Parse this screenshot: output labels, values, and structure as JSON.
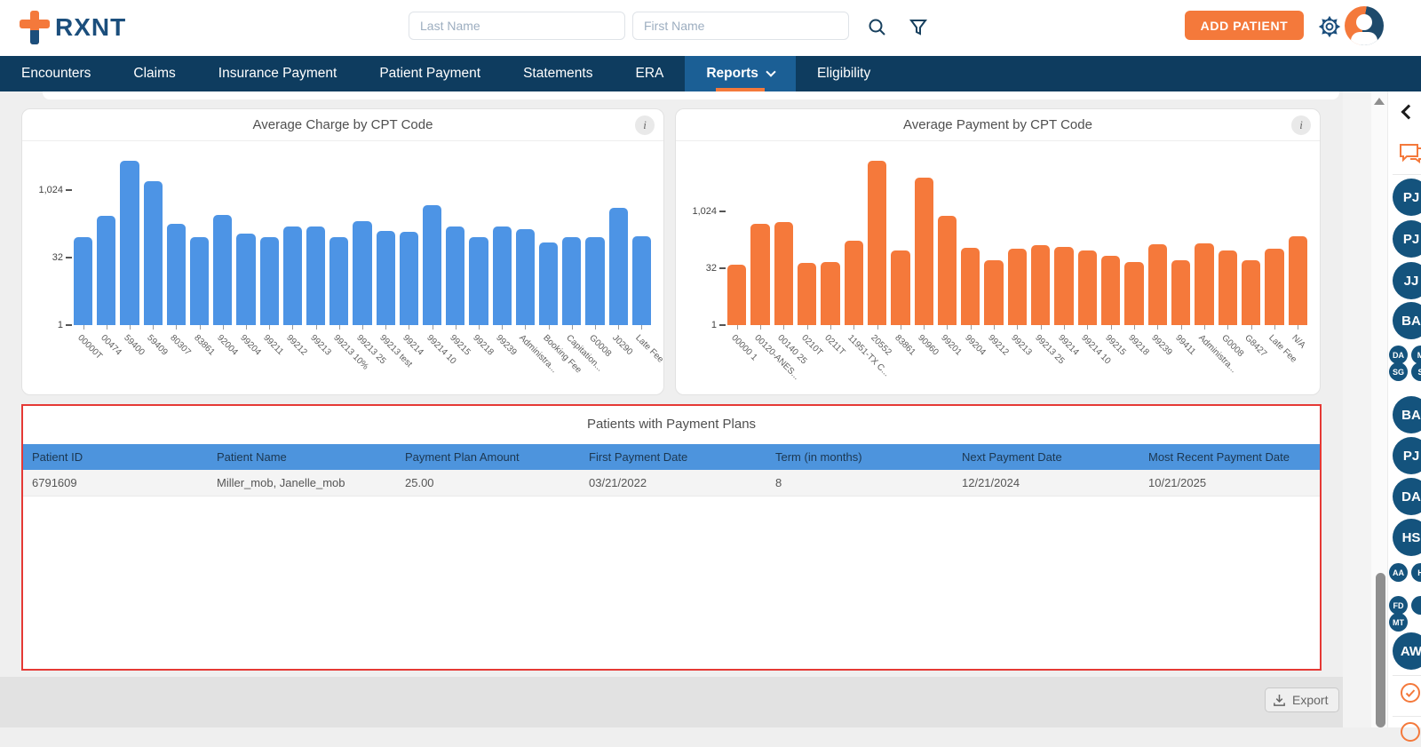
{
  "header": {
    "logo_text": "RXNT",
    "last_name_placeholder": "Last Name",
    "first_name_placeholder": "First Name",
    "add_patient_label": "ADD PATIENT"
  },
  "nav": {
    "items": [
      {
        "label": "Encounters",
        "active": false
      },
      {
        "label": "Claims",
        "active": false
      },
      {
        "label": "Insurance Payment",
        "active": false
      },
      {
        "label": "Patient Payment",
        "active": false
      },
      {
        "label": "Statements",
        "active": false
      },
      {
        "label": "ERA",
        "active": false
      },
      {
        "label": "Reports",
        "active": true,
        "has_dropdown": true
      },
      {
        "label": "Eligibility",
        "active": false
      }
    ]
  },
  "chart_data": [
    {
      "type": "bar",
      "title": "Average Charge by CPT Code",
      "color": "#4D94E5",
      "scale": "log2",
      "ylim": [
        1,
        16384
      ],
      "yticks": [
        1,
        32,
        1024
      ],
      "ytick_labels": [
        "1",
        "32",
        "1,024"
      ],
      "categories": [
        "00000T",
        "00474",
        "59400",
        "59409",
        "80307",
        "83861",
        "92004",
        "99204",
        "99211",
        "99212",
        "99213",
        "99213 10%",
        "99213 25",
        "99213 test",
        "99214",
        "99214 10",
        "99215",
        "99218",
        "99239",
        "Administra...",
        "Booking Fee",
        "Capitation...",
        "G0008",
        "J0290",
        "Late Fee"
      ],
      "values": [
        90,
        270,
        4700,
        1650,
        180,
        92,
        290,
        110,
        92,
        160,
        160,
        92,
        210,
        128,
        120,
        475,
        155,
        90,
        160,
        135,
        70,
        92,
        92,
        420,
        97
      ]
    },
    {
      "type": "bar",
      "title": "Average Payment by CPT Code",
      "color": "#F5793B",
      "scale": "log2",
      "ylim": [
        1,
        32768
      ],
      "yticks": [
        1,
        32,
        1024
      ],
      "ytick_labels": [
        "1",
        "32",
        "1,024"
      ],
      "categories": [
        "00000 1",
        "00120-ANES...",
        "00140 25",
        "0210T",
        "0211T",
        "11951-TX C...",
        "20552",
        "83861",
        "90960",
        "99201",
        "99204",
        "99212",
        "99213",
        "99213 25",
        "99214",
        "99214 10",
        "99215",
        "99218",
        "99239",
        "99411",
        "Administra...",
        "G0008",
        "G8427",
        "Late Fee",
        "N/A"
      ],
      "values": [
        40,
        480,
        550,
        45,
        48,
        170,
        23000,
        97,
        8200,
        780,
        110,
        52,
        104,
        128,
        120,
        97,
        68,
        48,
        135,
        52,
        150,
        97,
        52,
        104,
        220
      ]
    }
  ],
  "table": {
    "title": "Patients with Payment Plans",
    "columns": [
      "Patient ID",
      "Patient Name",
      "Payment Plan Amount",
      "First Payment Date",
      "Term (in months)",
      "Next Payment Date",
      "Most Recent Payment Date"
    ],
    "rows": [
      [
        "6791609",
        "Miller_mob, Janelle_mob",
        "25.00",
        "03/21/2022",
        "8",
        "12/21/2024",
        "10/21/2025"
      ]
    ]
  },
  "footer": {
    "export_label": "Export"
  },
  "sidebar": {
    "items": [
      {
        "type": "large",
        "label": "PJ"
      },
      {
        "type": "large",
        "label": "PJ"
      },
      {
        "type": "large",
        "label": "JJ"
      },
      {
        "type": "large",
        "label": "BA"
      },
      {
        "type": "pair",
        "labels": [
          "DA",
          "M"
        ]
      },
      {
        "type": "pair",
        "labels": [
          "SG",
          "S"
        ]
      },
      {
        "type": "large",
        "label": "BA"
      },
      {
        "type": "large",
        "label": "PJ"
      },
      {
        "type": "large",
        "label": "DA"
      },
      {
        "type": "large",
        "label": "HS"
      },
      {
        "type": "pair",
        "labels": [
          "AA",
          "H"
        ]
      },
      {
        "type": "pair",
        "labels": [
          "FD",
          ""
        ]
      },
      {
        "type": "single-small",
        "label": "MT"
      },
      {
        "type": "large",
        "label": "AW"
      }
    ]
  },
  "colors": {
    "brand_orange": "#F4793B",
    "nav_navy": "#0E3C5F",
    "nav_active": "#1B5F95",
    "bar_blue": "#4D94E5",
    "bar_orange": "#F5793B",
    "table_header_blue": "#4D94DD",
    "table_outline_red": "#E53935",
    "avatar_navy": "#14537D"
  }
}
